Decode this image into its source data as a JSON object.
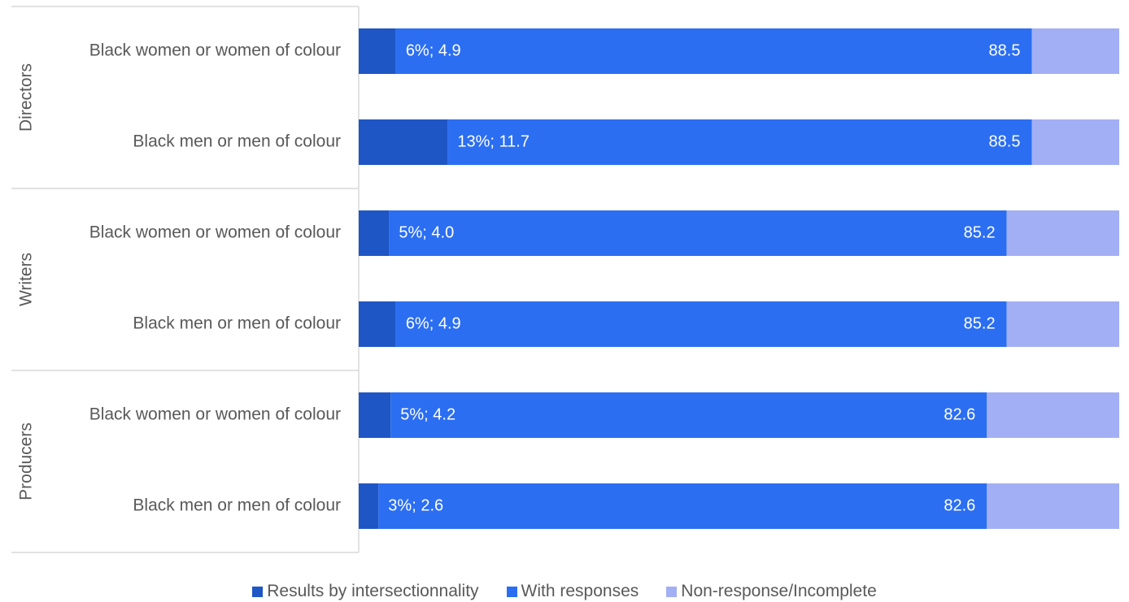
{
  "chart_data": {
    "type": "bar",
    "orientation": "horizontal",
    "stacked": true,
    "xlim": [
      0,
      100
    ],
    "grid": false,
    "legend_position": "bottom",
    "groups": [
      {
        "name": "Directors",
        "categories": [
          "Black women or women of colour",
          "Black men or men of colour"
        ]
      },
      {
        "name": "Writers",
        "categories": [
          "Black women or women of colour",
          "Black men or men of colour"
        ]
      },
      {
        "name": "Producers",
        "categories": [
          "Black women or women of colour",
          "Black men or men of colour"
        ]
      }
    ],
    "series": [
      {
        "name": "Results by intersectionnality",
        "color": "#1f56c6",
        "values": [
          4.9,
          11.7,
          4.0,
          4.9,
          4.2,
          2.6
        ],
        "labels": [
          "6%; 4.9",
          "13%; 11.7",
          "5%; 4.0",
          "6%; 4.9",
          "5%; 4.2",
          "3%; 2.6"
        ]
      },
      {
        "name": "With responses",
        "color": "#2b6ef2",
        "values": [
          83.6,
          76.8,
          81.2,
          80.3,
          78.4,
          80.0
        ],
        "labels": [
          "88.5",
          "88.5",
          "85.2",
          "85.2",
          "82.6",
          "82.6"
        ]
      },
      {
        "name": "Non-response/Incomplete",
        "color": "#a3aff5",
        "values": [
          11.5,
          11.5,
          14.8,
          14.8,
          17.4,
          17.4
        ]
      }
    ]
  }
}
